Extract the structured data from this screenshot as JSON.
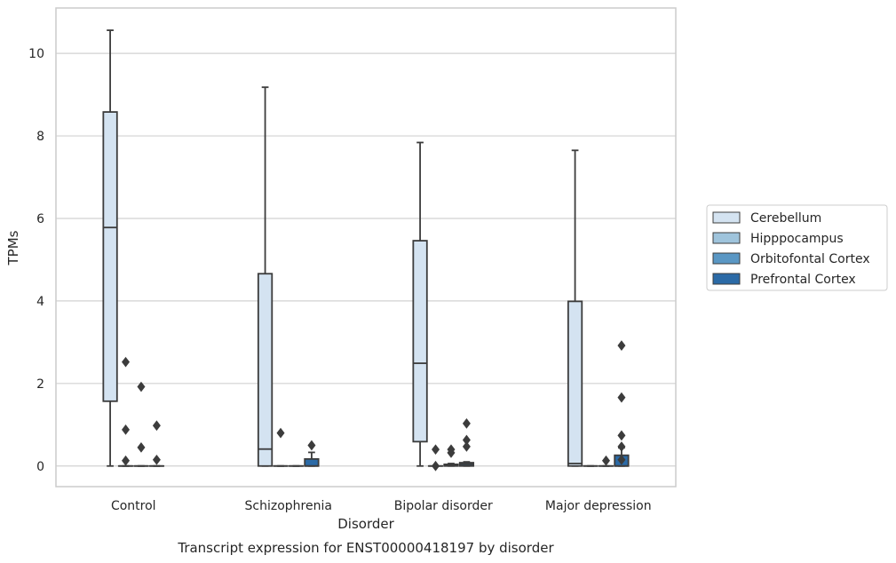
{
  "chart_data": {
    "type": "box",
    "caption": "Transcript expression for ENST00000418197 by disorder",
    "xlabel": "Disorder",
    "ylabel": "TPMs",
    "ylim": [
      -0.5,
      11.1
    ],
    "yticks": [
      0,
      2,
      4,
      6,
      8,
      10
    ],
    "grid": "horizontal",
    "legend_position": "right",
    "categories": [
      "Control",
      "Schizophrenia",
      "Bipolar disorder",
      "Major depression"
    ],
    "series": [
      {
        "name": "Cerebellum",
        "color": "#d4e3f1",
        "boxes": [
          {
            "whislo": 0,
            "q1": 1.57,
            "med": 5.78,
            "q3": 8.58,
            "whishi": 10.56,
            "fliers": []
          },
          {
            "whislo": 0,
            "q1": 0,
            "med": 0.41,
            "q3": 4.66,
            "whishi": 9.18,
            "fliers": []
          },
          {
            "whislo": 0,
            "q1": 0.59,
            "med": 2.49,
            "q3": 5.46,
            "whishi": 7.84,
            "fliers": []
          },
          {
            "whislo": 0,
            "q1": 0,
            "med": 0.06,
            "q3": 3.99,
            "whishi": 7.65,
            "fliers": []
          }
        ]
      },
      {
        "name": "Hipppocampus",
        "color": "#9fc4dc",
        "boxes": [
          {
            "whislo": 0,
            "q1": 0,
            "med": 0,
            "q3": 0,
            "whishi": 0,
            "fliers": [
              2.52,
              0.88,
              0.13
            ]
          },
          {
            "whislo": 0,
            "q1": 0,
            "med": 0,
            "q3": 0,
            "whishi": 0,
            "fliers": [
              0.8
            ]
          },
          {
            "whislo": 0,
            "q1": 0,
            "med": 0,
            "q3": 0,
            "whishi": 0,
            "fliers": [
              0.4,
              0.0
            ]
          },
          {
            "whislo": 0,
            "q1": 0,
            "med": 0,
            "q3": 0,
            "whishi": 0,
            "fliers": []
          }
        ]
      },
      {
        "name": "Orbitofontal Cortex",
        "color": "#5a97c4",
        "boxes": [
          {
            "whislo": 0,
            "q1": 0,
            "med": 0,
            "q3": 0,
            "whishi": 0,
            "fliers": [
              1.92,
              0.45
            ]
          },
          {
            "whislo": 0,
            "q1": 0,
            "med": 0,
            "q3": 0,
            "whishi": 0,
            "fliers": []
          },
          {
            "whislo": 0,
            "q1": 0,
            "med": 0.02,
            "q3": 0.04,
            "whishi": 0.06,
            "fliers": [
              0.4,
              0.32
            ]
          },
          {
            "whislo": 0,
            "q1": 0,
            "med": 0,
            "q3": 0,
            "whishi": 0,
            "fliers": [
              0.13
            ]
          }
        ]
      },
      {
        "name": "Prefrontal Cortex",
        "color": "#2b6aa6",
        "boxes": [
          {
            "whislo": 0,
            "q1": 0,
            "med": 0,
            "q3": 0,
            "whishi": 0,
            "fliers": [
              0.98,
              0.15
            ]
          },
          {
            "whislo": 0,
            "q1": 0,
            "med": 0.0,
            "q3": 0.17,
            "whishi": 0.33,
            "fliers": [
              0.5
            ]
          },
          {
            "whislo": 0,
            "q1": 0,
            "med": 0.04,
            "q3": 0.08,
            "whishi": 0.1,
            "fliers": [
              1.03,
              0.63,
              0.47
            ]
          },
          {
            "whislo": 0,
            "q1": 0,
            "med": 0,
            "q3": 0.26,
            "whishi": 0.44,
            "fliers": [
              2.92,
              1.66,
              0.74,
              0.47,
              0.15
            ]
          }
        ]
      }
    ]
  }
}
